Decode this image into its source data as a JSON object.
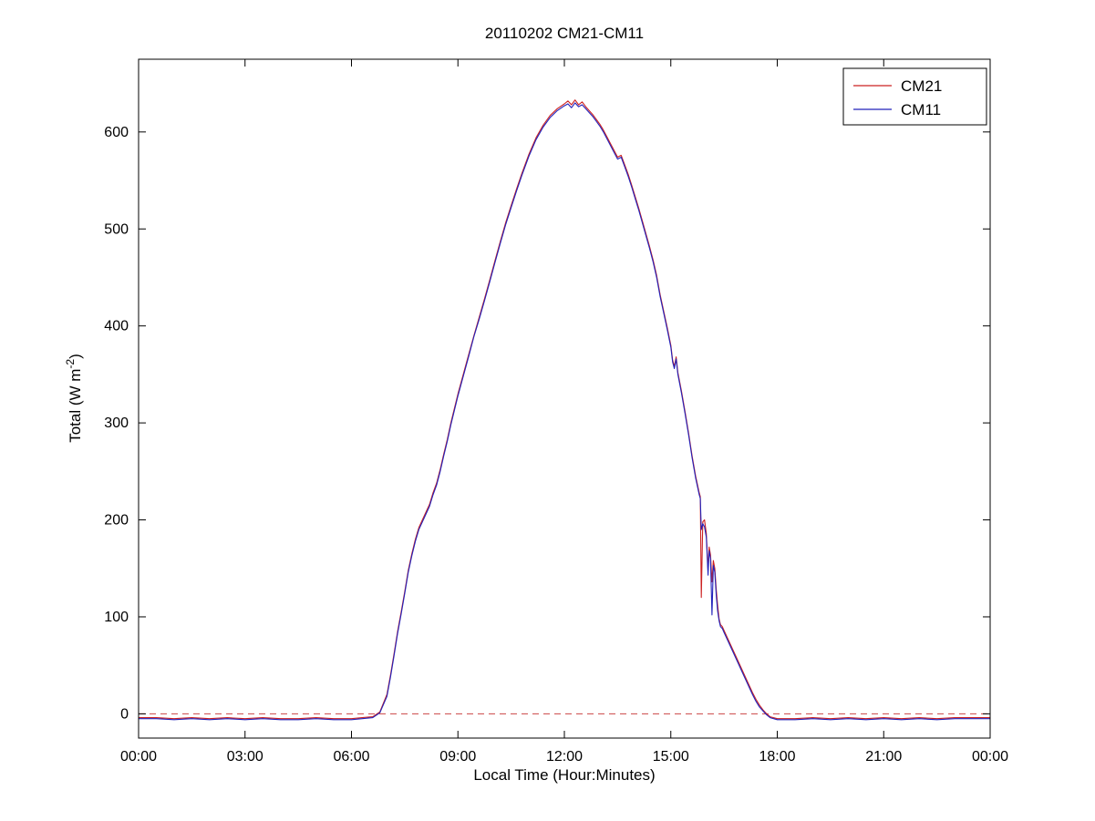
{
  "chart_data": {
    "type": "line",
    "title": "20110202 CM21-CM11",
    "xlabel": "Local Time (Hour:Minutes)",
    "ylabel": "Total (W m^-2)",
    "ylabel_parts": {
      "pre": "Total (W m",
      "sup": "-2",
      "post": ")"
    },
    "xlim": [
      0,
      24
    ],
    "ylim": [
      -25,
      675
    ],
    "grid": false,
    "x_ticks": [
      0,
      3,
      6,
      9,
      12,
      15,
      18,
      21,
      24
    ],
    "x_tick_labels": [
      "00:00",
      "03:00",
      "06:00",
      "09:00",
      "12:00",
      "15:00",
      "18:00",
      "21:00",
      "00:00"
    ],
    "y_ticks": [
      0,
      100,
      200,
      300,
      400,
      500,
      600
    ],
    "y_tick_labels": [
      "0",
      "100",
      "200",
      "300",
      "400",
      "500",
      "600"
    ],
    "axis_color": "#000000",
    "background_color": "#ffffff",
    "zero_line": {
      "y": 0,
      "style": "dashed",
      "color": "#cc4444"
    },
    "legend": {
      "position": "top-right",
      "entries": [
        {
          "label": "CM21",
          "color": "#cc2222"
        },
        {
          "label": "CM11",
          "color": "#2222bb"
        }
      ]
    },
    "series": [
      {
        "name": "CM21",
        "color": "#cc2222",
        "points": [
          [
            0,
            -4
          ],
          [
            0.5,
            -4
          ],
          [
            1,
            -5
          ],
          [
            1.5,
            -4
          ],
          [
            2,
            -5
          ],
          [
            2.5,
            -4
          ],
          [
            3,
            -5
          ],
          [
            3.5,
            -4
          ],
          [
            4,
            -5
          ],
          [
            4.5,
            -5
          ],
          [
            5,
            -4
          ],
          [
            5.5,
            -5
          ],
          [
            6,
            -5
          ],
          [
            6.3,
            -4
          ],
          [
            6.6,
            -3
          ],
          [
            6.8,
            2
          ],
          [
            7,
            20
          ],
          [
            7.1,
            40
          ],
          [
            7.2,
            62
          ],
          [
            7.3,
            85
          ],
          [
            7.4,
            105
          ],
          [
            7.5,
            126
          ],
          [
            7.6,
            148
          ],
          [
            7.7,
            165
          ],
          [
            7.8,
            180
          ],
          [
            7.9,
            192
          ],
          [
            8,
            200
          ],
          [
            8.1,
            208
          ],
          [
            8.2,
            216
          ],
          [
            8.3,
            228
          ],
          [
            8.4,
            238
          ],
          [
            8.5,
            252
          ],
          [
            8.6,
            268
          ],
          [
            8.7,
            283
          ],
          [
            8.8,
            300
          ],
          [
            8.9,
            315
          ],
          [
            9,
            330
          ],
          [
            9.15,
            350
          ],
          [
            9.3,
            370
          ],
          [
            9.45,
            390
          ],
          [
            9.6,
            409
          ],
          [
            9.75,
            428
          ],
          [
            9.9,
            448
          ],
          [
            10.05,
            468
          ],
          [
            10.2,
            488
          ],
          [
            10.35,
            507
          ],
          [
            10.5,
            524
          ],
          [
            10.65,
            541
          ],
          [
            10.8,
            557
          ],
          [
            11,
            577
          ],
          [
            11.2,
            594
          ],
          [
            11.4,
            607
          ],
          [
            11.6,
            617
          ],
          [
            11.8,
            624
          ],
          [
            12,
            629
          ],
          [
            12.1,
            632
          ],
          [
            12.2,
            628
          ],
          [
            12.3,
            633
          ],
          [
            12.4,
            628
          ],
          [
            12.5,
            631
          ],
          [
            12.6,
            626
          ],
          [
            12.7,
            622
          ],
          [
            12.8,
            618
          ],
          [
            12.9,
            613
          ],
          [
            13,
            608
          ],
          [
            13.1,
            602
          ],
          [
            13.2,
            595
          ],
          [
            13.3,
            588
          ],
          [
            13.4,
            581
          ],
          [
            13.5,
            574
          ],
          [
            13.6,
            576
          ],
          [
            13.7,
            566
          ],
          [
            13.8,
            556
          ],
          [
            13.9,
            545
          ],
          [
            14,
            533
          ],
          [
            14.1,
            521
          ],
          [
            14.2,
            508
          ],
          [
            14.3,
            495
          ],
          [
            14.4,
            482
          ],
          [
            14.5,
            468
          ],
          [
            14.6,
            452
          ],
          [
            14.7,
            432
          ],
          [
            14.8,
            415
          ],
          [
            14.9,
            398
          ],
          [
            15,
            380
          ],
          [
            15.05,
            365
          ],
          [
            15.1,
            358
          ],
          [
            15.15,
            368
          ],
          [
            15.2,
            352
          ],
          [
            15.3,
            333
          ],
          [
            15.4,
            312
          ],
          [
            15.5,
            290
          ],
          [
            15.6,
            266
          ],
          [
            15.7,
            245
          ],
          [
            15.8,
            228
          ],
          [
            15.83,
            224
          ],
          [
            15.86,
            120
          ],
          [
            15.9,
            198
          ],
          [
            15.95,
            200
          ],
          [
            16,
            186
          ],
          [
            16.05,
            148
          ],
          [
            16.08,
            172
          ],
          [
            16.12,
            164
          ],
          [
            16.16,
            136
          ],
          [
            16.2,
            158
          ],
          [
            16.24,
            150
          ],
          [
            16.28,
            128
          ],
          [
            16.32,
            112
          ],
          [
            16.36,
            98
          ],
          [
            16.4,
            92
          ],
          [
            16.45,
            90
          ],
          [
            16.5,
            86
          ],
          [
            16.6,
            78
          ],
          [
            16.7,
            70
          ],
          [
            16.8,
            62
          ],
          [
            16.9,
            54
          ],
          [
            17,
            46
          ],
          [
            17.1,
            38
          ],
          [
            17.2,
            30
          ],
          [
            17.3,
            22
          ],
          [
            17.4,
            15
          ],
          [
            17.5,
            9
          ],
          [
            17.6,
            4
          ],
          [
            17.7,
            0
          ],
          [
            17.8,
            -3
          ],
          [
            18,
            -5
          ],
          [
            18.5,
            -5
          ],
          [
            19,
            -4
          ],
          [
            19.5,
            -5
          ],
          [
            20,
            -4
          ],
          [
            20.5,
            -5
          ],
          [
            21,
            -4
          ],
          [
            21.5,
            -5
          ],
          [
            22,
            -4
          ],
          [
            22.5,
            -5
          ],
          [
            23,
            -4
          ],
          [
            23.5,
            -4
          ],
          [
            24,
            -4
          ]
        ]
      },
      {
        "name": "CM11",
        "color": "#2222bb",
        "points": [
          [
            0,
            -5
          ],
          [
            0.5,
            -5
          ],
          [
            1,
            -6
          ],
          [
            1.5,
            -5
          ],
          [
            2,
            -6
          ],
          [
            2.5,
            -5
          ],
          [
            3,
            -6
          ],
          [
            3.5,
            -5
          ],
          [
            4,
            -6
          ],
          [
            4.5,
            -6
          ],
          [
            5,
            -5
          ],
          [
            5.5,
            -6
          ],
          [
            6,
            -6
          ],
          [
            6.3,
            -5
          ],
          [
            6.6,
            -4
          ],
          [
            6.8,
            1
          ],
          [
            7,
            18
          ],
          [
            7.1,
            38
          ],
          [
            7.2,
            60
          ],
          [
            7.3,
            83
          ],
          [
            7.4,
            103
          ],
          [
            7.5,
            124
          ],
          [
            7.6,
            146
          ],
          [
            7.7,
            163
          ],
          [
            7.8,
            178
          ],
          [
            7.9,
            190
          ],
          [
            8,
            198
          ],
          [
            8.1,
            206
          ],
          [
            8.2,
            214
          ],
          [
            8.3,
            226
          ],
          [
            8.4,
            236
          ],
          [
            8.5,
            250
          ],
          [
            8.6,
            266
          ],
          [
            8.7,
            281
          ],
          [
            8.8,
            298
          ],
          [
            8.9,
            313
          ],
          [
            9,
            328
          ],
          [
            9.15,
            348
          ],
          [
            9.3,
            368
          ],
          [
            9.45,
            389
          ],
          [
            9.6,
            407
          ],
          [
            9.75,
            426
          ],
          [
            9.9,
            446
          ],
          [
            10.05,
            466
          ],
          [
            10.2,
            486
          ],
          [
            10.35,
            505
          ],
          [
            10.5,
            522
          ],
          [
            10.65,
            539
          ],
          [
            10.8,
            555
          ],
          [
            11,
            575
          ],
          [
            11.2,
            592
          ],
          [
            11.4,
            605
          ],
          [
            11.6,
            615
          ],
          [
            11.8,
            622
          ],
          [
            12,
            627
          ],
          [
            12.1,
            629
          ],
          [
            12.2,
            625
          ],
          [
            12.3,
            630
          ],
          [
            12.4,
            626
          ],
          [
            12.5,
            628
          ],
          [
            12.6,
            624
          ],
          [
            12.7,
            620
          ],
          [
            12.8,
            616
          ],
          [
            12.9,
            611
          ],
          [
            13,
            606
          ],
          [
            13.1,
            600
          ],
          [
            13.2,
            593
          ],
          [
            13.3,
            586
          ],
          [
            13.4,
            579
          ],
          [
            13.5,
            572
          ],
          [
            13.6,
            574
          ],
          [
            13.7,
            564
          ],
          [
            13.8,
            554
          ],
          [
            13.9,
            543
          ],
          [
            14,
            531
          ],
          [
            14.1,
            519
          ],
          [
            14.2,
            506
          ],
          [
            14.3,
            493
          ],
          [
            14.4,
            480
          ],
          [
            14.5,
            466
          ],
          [
            14.6,
            450
          ],
          [
            14.7,
            430
          ],
          [
            14.8,
            413
          ],
          [
            14.9,
            396
          ],
          [
            15,
            378
          ],
          [
            15.05,
            363
          ],
          [
            15.1,
            356
          ],
          [
            15.15,
            366
          ],
          [
            15.2,
            350
          ],
          [
            15.3,
            331
          ],
          [
            15.4,
            310
          ],
          [
            15.5,
            288
          ],
          [
            15.6,
            264
          ],
          [
            15.7,
            243
          ],
          [
            15.8,
            226
          ],
          [
            15.83,
            222
          ],
          [
            15.86,
            190
          ],
          [
            15.9,
            196
          ],
          [
            15.95,
            193
          ],
          [
            16,
            182
          ],
          [
            16.05,
            143
          ],
          [
            16.08,
            168
          ],
          [
            16.12,
            160
          ],
          [
            16.16,
            102
          ],
          [
            16.2,
            153
          ],
          [
            16.24,
            146
          ],
          [
            16.28,
            122
          ],
          [
            16.32,
            106
          ],
          [
            16.36,
            96
          ],
          [
            16.4,
            90
          ],
          [
            16.45,
            88
          ],
          [
            16.5,
            84
          ],
          [
            16.6,
            76
          ],
          [
            16.7,
            68
          ],
          [
            16.8,
            60
          ],
          [
            16.9,
            52
          ],
          [
            17,
            44
          ],
          [
            17.1,
            36
          ],
          [
            17.2,
            28
          ],
          [
            17.3,
            20
          ],
          [
            17.4,
            13
          ],
          [
            17.5,
            7
          ],
          [
            17.6,
            3
          ],
          [
            17.7,
            -1
          ],
          [
            17.8,
            -4
          ],
          [
            18,
            -6
          ],
          [
            18.5,
            -6
          ],
          [
            19,
            -5
          ],
          [
            19.5,
            -6
          ],
          [
            20,
            -5
          ],
          [
            20.5,
            -6
          ],
          [
            21,
            -5
          ],
          [
            21.5,
            -6
          ],
          [
            22,
            -5
          ],
          [
            22.5,
            -6
          ],
          [
            23,
            -5
          ],
          [
            23.5,
            -5
          ],
          [
            24,
            -5
          ]
        ]
      }
    ]
  }
}
